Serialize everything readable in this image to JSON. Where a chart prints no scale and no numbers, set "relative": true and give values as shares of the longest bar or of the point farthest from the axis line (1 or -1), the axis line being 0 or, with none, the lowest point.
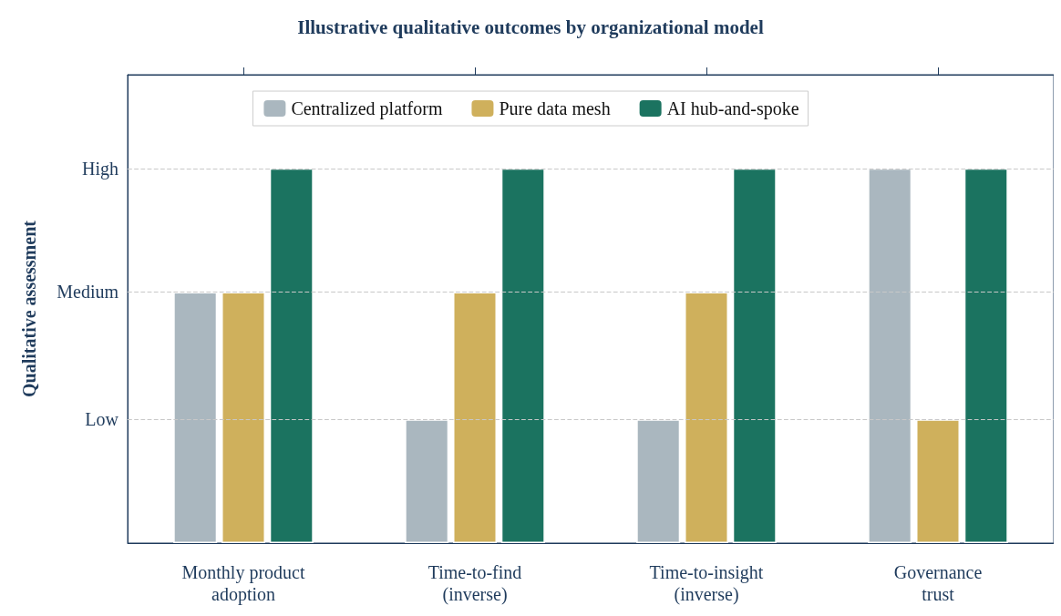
{
  "chart_data": {
    "type": "bar",
    "title": "Illustrative qualitative outcomes by organizational model",
    "ylabel": "Qualitative assessment",
    "categories": [
      "Monthly product\nadoption",
      "Time-to-find\n(inverse)",
      "Time-to-insight\n(inverse)",
      "Governance\ntrust"
    ],
    "series": [
      {
        "name": "Centralized platform",
        "color": "#aab7bf",
        "values": [
          0.67,
          0.33,
          0.33,
          1
        ]
      },
      {
        "name": "Pure data mesh",
        "color": "#cfb05c",
        "values": [
          0.67,
          0.67,
          0.67,
          0.33
        ]
      },
      {
        "name": "AI hub-and-spoke",
        "color": "#1b7360",
        "values": [
          1,
          1,
          1,
          1
        ]
      }
    ],
    "relative": true,
    "ref_lines": [
      {
        "axis": "y",
        "value": 0.33,
        "label": "Low",
        "line_style": "dashed",
        "color": "#c8c8c8"
      },
      {
        "axis": "y",
        "value": 0.67,
        "label": "Medium",
        "line_style": "dashed",
        "color": "#c8c8c8"
      },
      {
        "axis": "y",
        "value": 1,
        "label": "High",
        "line_style": "dashed",
        "color": "#c8c8c8"
      }
    ],
    "legend": "top"
  }
}
